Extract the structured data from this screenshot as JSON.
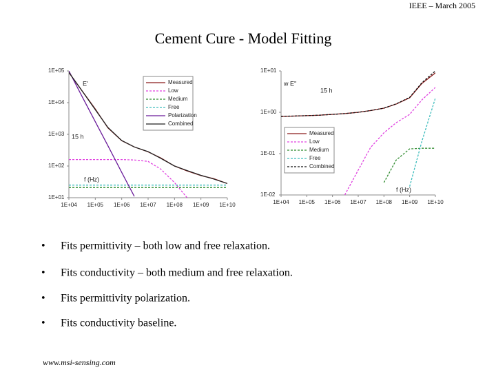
{
  "header": "IEEE – March 2005",
  "title": "Cement Cure - Model Fitting",
  "bullets": [
    "Fits permittivity – both low and free relaxation.",
    "Fits conductivity – both medium and free relaxation.",
    "Fits permittivity polarization.",
    "Fits conductivity baseline."
  ],
  "footer": "www.msi-sensing.com",
  "chart_data": [
    {
      "type": "line",
      "log_x": true,
      "log_y": true,
      "legend": "upper right",
      "annotations": [
        "E'",
        "15 h",
        "f (Hz)"
      ],
      "x": [
        10000,
        30000,
        100000,
        300000,
        1000000,
        3000000,
        10000000,
        30000000,
        100000000,
        300000000,
        1000000000,
        3000000000,
        10000000000
      ],
      "xlim": [
        10000,
        10000000000
      ],
      "xticks": [
        {
          "value": 10000,
          "label": "1E+04"
        },
        {
          "value": 100000,
          "label": "1E+05"
        },
        {
          "value": 1000000,
          "label": "1E+06"
        },
        {
          "value": 10000000,
          "label": "1E+07"
        },
        {
          "value": 100000000,
          "label": "1E+08"
        },
        {
          "value": 1000000000,
          "label": "1E+09"
        },
        {
          "value": 10000000000,
          "label": "1E+10"
        }
      ],
      "ylim": [
        10,
        100000
      ],
      "yticks": [
        {
          "value": 10,
          "label": "1E+01"
        },
        {
          "value": 100,
          "label": "1E+02"
        },
        {
          "value": 1000,
          "label": "1E+03"
        },
        {
          "value": 10000,
          "label": "1E+04"
        },
        {
          "value": 100000,
          "label": "1E+05"
        }
      ],
      "series": [
        {
          "name": "Measured",
          "color": "#8b1a1a",
          "dashed": false,
          "values": [
            89000,
            25000,
            6300,
            1600,
            630,
            400,
            280,
            180,
            100,
            70,
            50,
            40,
            28
          ]
        },
        {
          "name": "Low",
          "color": "#e040e0",
          "dashed": true,
          "values": [
            160,
            160,
            160,
            160,
            160,
            155,
            140,
            80,
            30,
            10,
            null,
            null,
            null
          ]
        },
        {
          "name": "Medium",
          "color": "#2e8b2e",
          "dashed": true,
          "values": [
            21,
            21,
            21,
            21,
            21,
            21,
            21,
            21,
            21,
            21,
            21,
            21,
            21
          ]
        },
        {
          "name": "Free",
          "color": "#3cbcbc",
          "dashed": true,
          "values": [
            25,
            25,
            25,
            25,
            25,
            25,
            25,
            25,
            25,
            25,
            25,
            25,
            25
          ]
        },
        {
          "name": "Polarization",
          "color": "#6a1b9a",
          "dashed": false,
          "values": [
            100000,
            17000,
            2500,
            440,
            63,
            11,
            null,
            null,
            null,
            null,
            null,
            null,
            null
          ]
        },
        {
          "name": "Combined",
          "color": "#222222",
          "dashed": false,
          "values": [
            90000,
            25000,
            6000,
            1650,
            640,
            400,
            285,
            175,
            100,
            72,
            51,
            39,
            28
          ]
        }
      ]
    },
    {
      "type": "line",
      "log_x": true,
      "log_y": true,
      "legend": "center left",
      "annotations": [
        "w E''",
        "15 h",
        "f (Hz)"
      ],
      "x": [
        10000,
        30000,
        100000,
        300000,
        1000000,
        3000000,
        10000000,
        30000000,
        100000000,
        300000000,
        1000000000,
        3000000000,
        10000000000
      ],
      "xlim": [
        10000,
        10000000000
      ],
      "xticks": [
        {
          "value": 10000,
          "label": "1E+04"
        },
        {
          "value": 100000,
          "label": "1E+05"
        },
        {
          "value": 1000000,
          "label": "1E+06"
        },
        {
          "value": 10000000,
          "label": "1E+07"
        },
        {
          "value": 100000000,
          "label": "1E+08"
        },
        {
          "value": 1000000000,
          "label": "1E+09"
        },
        {
          "value": 10000000000,
          "label": "1E+10"
        }
      ],
      "ylim": [
        0.01,
        10
      ],
      "yticks": [
        {
          "value": 0.01,
          "label": "1E-02"
        },
        {
          "value": 0.1,
          "label": "1E-01"
        },
        {
          "value": 1,
          "label": "1E+00"
        },
        {
          "value": 10,
          "label": "1E+01"
        }
      ],
      "series": [
        {
          "name": "Measured",
          "color": "#8b1a1a",
          "dashed": false,
          "values": [
            0.79,
            0.81,
            0.83,
            0.85,
            0.89,
            0.93,
            1.0,
            1.1,
            1.26,
            1.58,
            2.24,
            5.0,
            9.0
          ]
        },
        {
          "name": "Low",
          "color": "#e040e0",
          "dashed": true,
          "values": [
            null,
            null,
            null,
            null,
            null,
            0.01,
            0.04,
            0.14,
            0.32,
            0.56,
            0.89,
            2.0,
            4.0
          ]
        },
        {
          "name": "Medium",
          "color": "#2e8b2e",
          "dashed": true,
          "values": [
            null,
            null,
            null,
            null,
            null,
            null,
            null,
            null,
            0.02,
            0.07,
            0.13,
            0.135,
            0.135
          ]
        },
        {
          "name": "Free",
          "color": "#3cbcbc",
          "dashed": true,
          "values": [
            null,
            null,
            null,
            null,
            null,
            null,
            null,
            null,
            null,
            null,
            0.016,
            0.2,
            2.2
          ]
        },
        {
          "name": "Combined",
          "color": "#111111",
          "dashed": true,
          "values": [
            0.8,
            0.81,
            0.83,
            0.85,
            0.89,
            0.93,
            1.0,
            1.1,
            1.26,
            1.6,
            2.3,
            5.2,
            10
          ]
        }
      ]
    }
  ]
}
